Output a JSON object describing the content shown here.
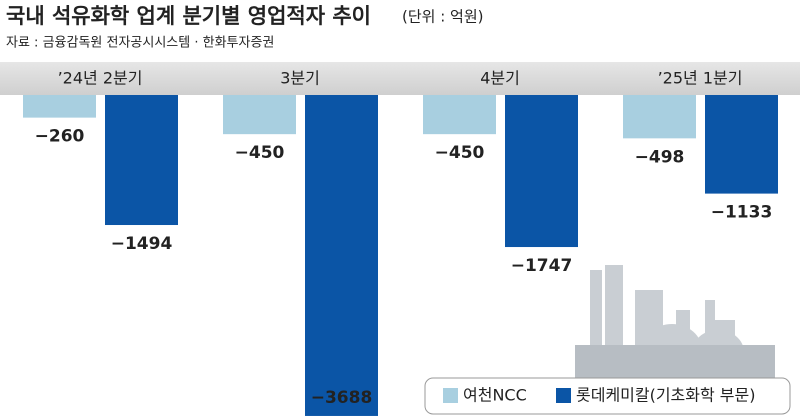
{
  "chart_data": {
    "type": "bar",
    "title": "국내 석유화학 업계 분기별 영업적자 추이",
    "unit": "(단위 : 억원)",
    "source": "자료 : 금융감독원 전자공시시스템 · 한화투자증권",
    "categories": [
      "’24년 2분기",
      "3분기",
      "4분기",
      "’25년 1분기"
    ],
    "series": [
      {
        "name": "여천NCC",
        "color": "#a8cfe0",
        "values": [
          -260,
          -450,
          -450,
          -498
        ],
        "value_labels": [
          "−260",
          "−450",
          "−450",
          "−498"
        ]
      },
      {
        "name": "롯데케미칼(기초화학 부문)",
        "color": "#0b55a6",
        "values": [
          -1494,
          -3688,
          -1747,
          -1133
        ],
        "value_labels": [
          "−1494",
          "−3688",
          "−1747",
          "−1133"
        ]
      }
    ],
    "ylim": [
      -3700,
      0
    ]
  }
}
